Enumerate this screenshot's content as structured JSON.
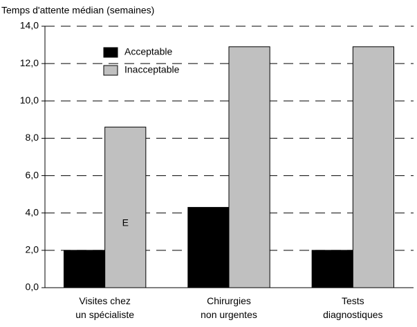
{
  "chart_data": {
    "type": "bar",
    "y_label": "Temps d'attente médian (semaines)",
    "categories": [
      "Visites chez\nun spécialiste",
      "Chirurgies\nnon urgentes",
      "Tests\ndiagnostiques"
    ],
    "series": [
      {
        "name": "Acceptable",
        "color": "#000000",
        "values": [
          2.0,
          4.3,
          2.0
        ]
      },
      {
        "name": "Inacceptable",
        "color": "#c0c0c0",
        "values": [
          8.6,
          12.9,
          12.9
        ]
      }
    ],
    "annotations": [
      {
        "text": "E",
        "series": 1,
        "index": 0
      }
    ],
    "ylim": [
      0,
      14
    ],
    "yticks": [
      {
        "value": 0,
        "label": "0,0"
      },
      {
        "value": 2,
        "label": "2,0"
      },
      {
        "value": 4,
        "label": "4,0"
      },
      {
        "value": 6,
        "label": "6,0"
      },
      {
        "value": 8,
        "label": "8,0"
      },
      {
        "value": 10,
        "label": "10,0"
      },
      {
        "value": 12,
        "label": "12,0"
      },
      {
        "value": 14,
        "label": "14,0"
      }
    ],
    "grid": true,
    "legend": "top-left"
  }
}
